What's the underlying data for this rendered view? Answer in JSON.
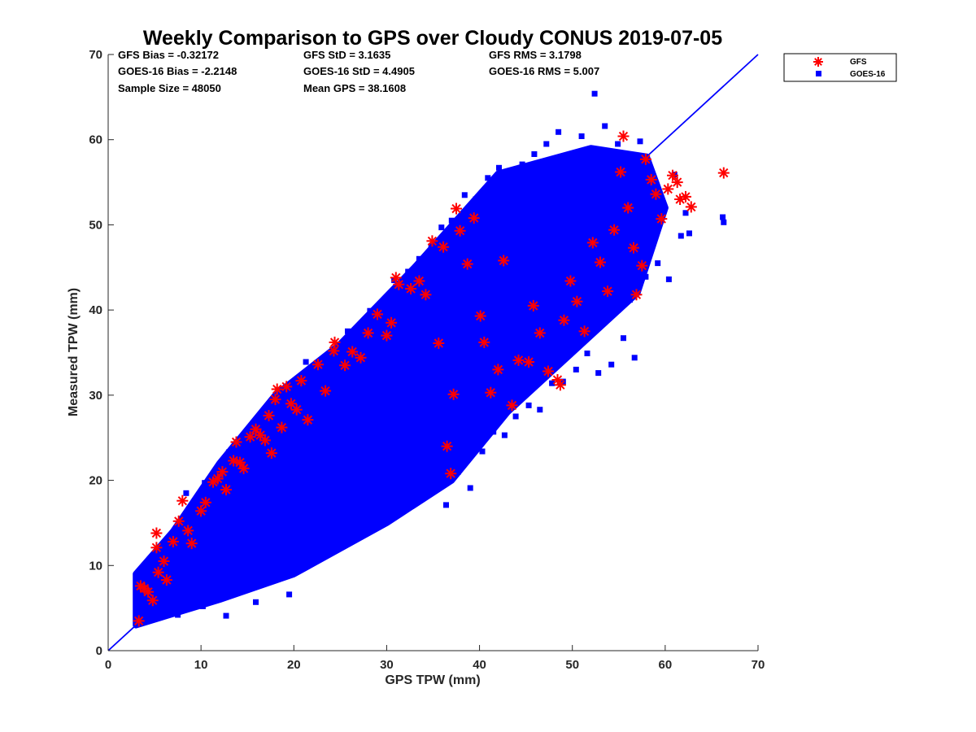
{
  "chart_data": {
    "type": "scatter",
    "title": "Weekly Comparison to GPS over Cloudy CONUS 2019-07-05",
    "xlabel": "GPS TPW (mm)",
    "ylabel": "Measured TPW (mm)",
    "xlim": [
      0,
      70
    ],
    "ylim": [
      0,
      70
    ],
    "xticks": [
      "0",
      "10",
      "20",
      "30",
      "40",
      "50",
      "60",
      "70"
    ],
    "yticks": [
      "0",
      "10",
      "20",
      "30",
      "40",
      "50",
      "60",
      "70"
    ],
    "grid": false,
    "legend_position": "outside-top-right",
    "reference_line": {
      "from": [
        0,
        0
      ],
      "to": [
        70,
        70
      ],
      "color": "#0000ff"
    },
    "stats": [
      [
        "GFS Bias = -0.32172",
        "GFS StD = 3.1635",
        "GFS RMS = 3.1798"
      ],
      [
        "GOES-16 Bias = -2.2148",
        "GOES-16 StD = 4.4905",
        "GOES-16 RMS = 5.007"
      ],
      [
        "Sample Size = 48050",
        "Mean GPS = 38.1608",
        ""
      ]
    ],
    "series": [
      {
        "name": "GFS",
        "marker": "asterisk",
        "color": "#ff0000",
        "points": [
          [
            3.3,
            3.5
          ],
          [
            3.5,
            7.6
          ],
          [
            3.9,
            7.3
          ],
          [
            4.3,
            6.9
          ],
          [
            4.8,
            5.9
          ],
          [
            5.2,
            13.8
          ],
          [
            5.2,
            12.1
          ],
          [
            5.4,
            9.2
          ],
          [
            6.0,
            10.5
          ],
          [
            6.3,
            8.3
          ],
          [
            7.0,
            12.8
          ],
          [
            7.6,
            15.2
          ],
          [
            8.0,
            17.6
          ],
          [
            8.6,
            14.1
          ],
          [
            9.0,
            12.6
          ],
          [
            10.0,
            16.4
          ],
          [
            10.5,
            17.4
          ],
          [
            11.3,
            19.8
          ],
          [
            11.8,
            20.2
          ],
          [
            12.3,
            21.0
          ],
          [
            12.7,
            18.9
          ],
          [
            13.5,
            22.3
          ],
          [
            13.8,
            24.5
          ],
          [
            14.2,
            22.1
          ],
          [
            14.6,
            21.4
          ],
          [
            15.3,
            25.1
          ],
          [
            15.9,
            26.0
          ],
          [
            16.4,
            25.3
          ],
          [
            16.9,
            24.7
          ],
          [
            17.3,
            27.6
          ],
          [
            17.6,
            23.2
          ],
          [
            18.0,
            29.5
          ],
          [
            18.2,
            30.7
          ],
          [
            18.7,
            26.2
          ],
          [
            19.2,
            31.0
          ],
          [
            19.7,
            29.0
          ],
          [
            20.3,
            28.3
          ],
          [
            20.8,
            31.7
          ],
          [
            21.5,
            27.1
          ],
          [
            22.6,
            33.6
          ],
          [
            23.4,
            30.5
          ],
          [
            24.3,
            35.2
          ],
          [
            24.4,
            36.2
          ],
          [
            25.5,
            33.5
          ],
          [
            26.3,
            35.1
          ],
          [
            27.2,
            34.4
          ],
          [
            28.0,
            37.3
          ],
          [
            29.0,
            39.5
          ],
          [
            30.0,
            37.0
          ],
          [
            30.5,
            38.5
          ],
          [
            31.0,
            43.8
          ],
          [
            31.3,
            43.0
          ],
          [
            32.6,
            42.5
          ],
          [
            33.5,
            43.4
          ],
          [
            34.2,
            41.8
          ],
          [
            34.9,
            48.1
          ],
          [
            35.6,
            36.1
          ],
          [
            36.1,
            47.4
          ],
          [
            36.5,
            24.0
          ],
          [
            36.9,
            20.8
          ],
          [
            37.2,
            30.1
          ],
          [
            37.5,
            51.9
          ],
          [
            37.9,
            49.3
          ],
          [
            38.7,
            45.4
          ],
          [
            39.4,
            50.8
          ],
          [
            40.1,
            39.3
          ],
          [
            40.5,
            36.2
          ],
          [
            41.2,
            30.3
          ],
          [
            42.0,
            33.0
          ],
          [
            42.6,
            45.8
          ],
          [
            43.5,
            28.8
          ],
          [
            44.2,
            34.1
          ],
          [
            45.3,
            33.9
          ],
          [
            45.8,
            40.5
          ],
          [
            46.5,
            37.3
          ],
          [
            47.4,
            32.8
          ],
          [
            48.4,
            31.8
          ],
          [
            48.7,
            31.2
          ],
          [
            49.1,
            38.8
          ],
          [
            49.8,
            43.4
          ],
          [
            50.5,
            41.0
          ],
          [
            51.3,
            37.5
          ],
          [
            52.2,
            47.9
          ],
          [
            53.0,
            45.6
          ],
          [
            53.8,
            42.2
          ],
          [
            54.5,
            49.4
          ],
          [
            55.2,
            56.2
          ],
          [
            55.5,
            60.4
          ],
          [
            56.0,
            52.0
          ],
          [
            56.6,
            47.3
          ],
          [
            56.9,
            41.8
          ],
          [
            57.5,
            45.2
          ],
          [
            57.9,
            57.7
          ],
          [
            58.5,
            55.3
          ],
          [
            59.0,
            53.6
          ],
          [
            59.6,
            50.7
          ],
          [
            60.3,
            54.2
          ],
          [
            60.8,
            55.8
          ],
          [
            61.3,
            55.0
          ],
          [
            61.6,
            53.0
          ],
          [
            62.2,
            53.3
          ],
          [
            62.8,
            52.1
          ],
          [
            66.3,
            56.1
          ]
        ]
      },
      {
        "name": "GOES-16",
        "marker": "square",
        "color": "#0000ff",
        "points": [
          [
            3.2,
            8.3
          ],
          [
            3.5,
            6.5
          ],
          [
            4.1,
            5.1
          ],
          [
            4.6,
            7.4
          ],
          [
            5.0,
            9.3
          ],
          [
            5.6,
            6.2
          ],
          [
            6.1,
            11.8
          ],
          [
            6.5,
            8.0
          ],
          [
            7.2,
            13.1
          ],
          [
            7.5,
            4.2
          ],
          [
            7.9,
            14.8
          ],
          [
            8.3,
            10.0
          ],
          [
            8.4,
            18.5
          ],
          [
            9.0,
            15.6
          ],
          [
            9.6,
            16.6
          ],
          [
            10.2,
            5.2
          ],
          [
            10.4,
            19.7
          ],
          [
            10.8,
            12.0
          ],
          [
            11.2,
            19.8
          ],
          [
            11.8,
            17.3
          ],
          [
            12.4,
            20.8
          ],
          [
            12.7,
            4.1
          ],
          [
            13.0,
            23.3
          ],
          [
            13.6,
            11.3
          ],
          [
            14.0,
            20.3
          ],
          [
            14.9,
            24.1
          ],
          [
            15.5,
            18.1
          ],
          [
            15.9,
            5.7
          ],
          [
            16.2,
            26.4
          ],
          [
            16.8,
            13.4
          ],
          [
            17.5,
            28.0
          ],
          [
            18.0,
            11.6
          ],
          [
            18.4,
            29.8
          ],
          [
            19.0,
            22.4
          ],
          [
            19.5,
            6.6
          ],
          [
            20.1,
            31.3
          ],
          [
            20.6,
            17.3
          ],
          [
            21.3,
            33.9
          ],
          [
            21.9,
            10.7
          ],
          [
            22.4,
            33.1
          ],
          [
            23.2,
            26.9
          ],
          [
            23.8,
            14.7
          ],
          [
            24.5,
            35.2
          ],
          [
            25.0,
            20.9
          ],
          [
            25.8,
            37.5
          ],
          [
            26.3,
            13.1
          ],
          [
            27.0,
            32.6
          ],
          [
            27.5,
            17.7
          ],
          [
            28.2,
            39.9
          ],
          [
            28.8,
            22.8
          ],
          [
            29.5,
            40.0
          ],
          [
            30.2,
            22.6
          ],
          [
            30.8,
            43.5
          ],
          [
            31.5,
            22.1
          ],
          [
            32.3,
            44.5
          ],
          [
            32.8,
            20.1
          ],
          [
            33.5,
            46.0
          ],
          [
            34.0,
            19.0
          ],
          [
            34.8,
            47.5
          ],
          [
            35.3,
            20.9
          ],
          [
            35.9,
            49.7
          ],
          [
            36.4,
            17.1
          ],
          [
            37.0,
            50.5
          ],
          [
            37.7,
            21.0
          ],
          [
            38.4,
            53.5
          ],
          [
            39.0,
            19.1
          ],
          [
            39.6,
            53.0
          ],
          [
            40.3,
            23.4
          ],
          [
            40.9,
            55.5
          ],
          [
            41.5,
            25.7
          ],
          [
            42.1,
            56.7
          ],
          [
            42.7,
            25.3
          ],
          [
            43.3,
            55.2
          ],
          [
            43.9,
            27.5
          ],
          [
            44.6,
            57.1
          ],
          [
            45.3,
            28.8
          ],
          [
            45.9,
            58.3
          ],
          [
            46.5,
            28.3
          ],
          [
            47.2,
            59.5
          ],
          [
            47.8,
            31.4
          ],
          [
            48.5,
            60.9
          ],
          [
            49.0,
            31.6
          ],
          [
            49.6,
            57.8
          ],
          [
            50.4,
            33.0
          ],
          [
            51.0,
            60.4
          ],
          [
            51.6,
            34.9
          ],
          [
            52.4,
            65.4
          ],
          [
            52.8,
            32.6
          ],
          [
            53.5,
            61.6
          ],
          [
            54.2,
            33.6
          ],
          [
            54.9,
            59.5
          ],
          [
            55.5,
            36.7
          ],
          [
            56.2,
            41.2
          ],
          [
            56.7,
            34.4
          ],
          [
            57.3,
            59.8
          ],
          [
            57.9,
            43.9
          ],
          [
            58.5,
            53.8
          ],
          [
            59.2,
            45.5
          ],
          [
            59.8,
            52.1
          ],
          [
            60.4,
            43.6
          ],
          [
            61.0,
            55.9
          ],
          [
            61.7,
            48.7
          ],
          [
            62.2,
            51.4
          ],
          [
            62.6,
            49.0
          ],
          [
            66.2,
            50.9
          ],
          [
            66.3,
            50.3
          ]
        ]
      }
    ]
  }
}
